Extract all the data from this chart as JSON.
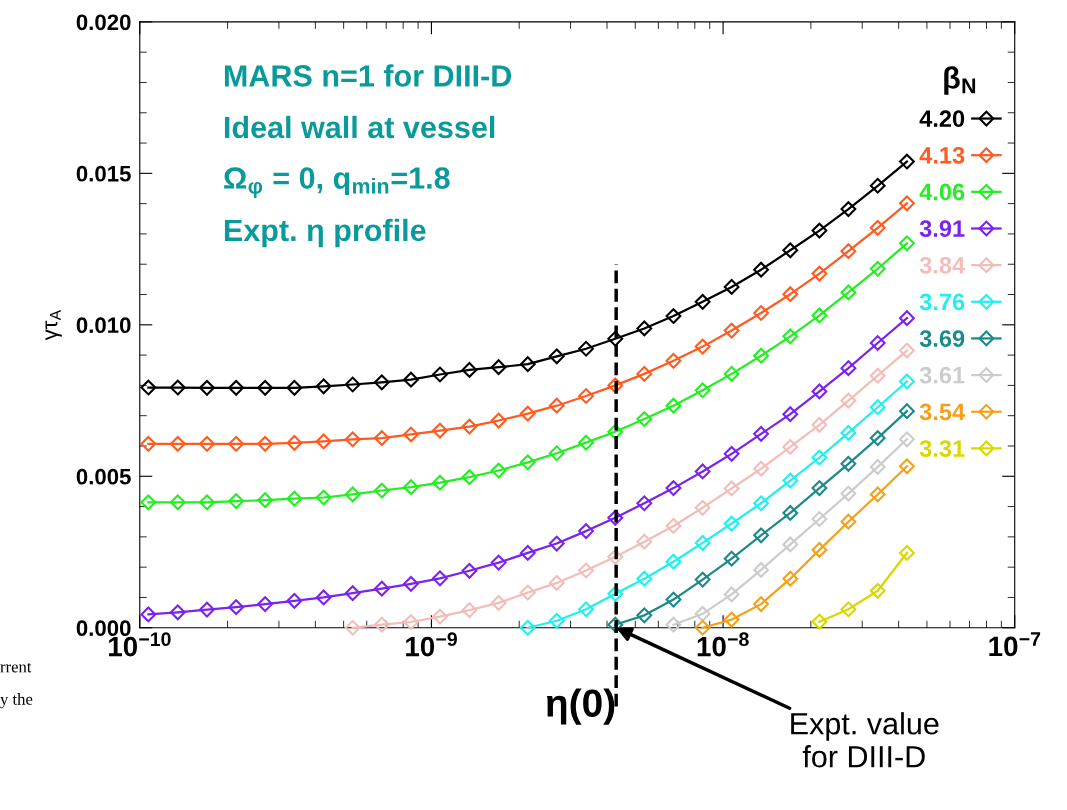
{
  "chart_data": {
    "type": "line",
    "ylabel": "γτ$_{A}$",
    "legend_title": "β$_{N}$",
    "x": [
      1.07e-10,
      1.35e-10,
      1.7e-10,
      2.14e-10,
      2.69e-10,
      3.39e-10,
      4.27e-10,
      5.37e-10,
      6.76e-10,
      8.51e-10,
      1.07e-09,
      1.35e-09,
      1.7e-09,
      2.14e-09,
      2.69e-09,
      3.39e-09,
      4.27e-09,
      5.37e-09,
      6.76e-09,
      8.51e-09,
      1.07e-08,
      1.35e-08,
      1.7e-08,
      2.14e-08,
      2.69e-08,
      3.39e-08,
      4.27e-08
    ],
    "series": [
      {
        "name": "4.20",
        "color": "#000000",
        "values": [
          0.00793,
          0.00793,
          0.00792,
          0.00792,
          0.00792,
          0.00792,
          0.00797,
          0.00803,
          0.0081,
          0.00819,
          0.00836,
          0.00851,
          0.0086,
          0.0087,
          0.00896,
          0.00921,
          0.00954,
          0.00988,
          0.01029,
          0.01076,
          0.01125,
          0.01182,
          0.01246,
          0.01311,
          0.01382,
          0.01459,
          0.01539
        ]
      },
      {
        "name": "4.13",
        "color": "#ff5a1f",
        "values": [
          0.00607,
          0.00607,
          0.00607,
          0.00607,
          0.00607,
          0.0061,
          0.00615,
          0.00622,
          0.00626,
          0.00638,
          0.00651,
          0.00664,
          0.00684,
          0.00707,
          0.00733,
          0.00765,
          0.008,
          0.00838,
          0.00881,
          0.00928,
          0.00981,
          0.01039,
          0.01101,
          0.01169,
          0.01243,
          0.0132,
          0.01401
        ]
      },
      {
        "name": "4.06",
        "color": "#22ee22",
        "values": [
          0.00414,
          0.00414,
          0.00414,
          0.00418,
          0.00421,
          0.00426,
          0.0043,
          0.0044,
          0.00453,
          0.00464,
          0.00479,
          0.00497,
          0.00519,
          0.00546,
          0.00576,
          0.00611,
          0.00647,
          0.00689,
          0.00733,
          0.00784,
          0.00838,
          0.00898,
          0.00962,
          0.01031,
          0.01107,
          0.01185,
          0.01269
        ]
      },
      {
        "name": "3.91",
        "color": "#7a22ee",
        "values": [
          0.00044,
          0.00051,
          0.0006,
          0.00068,
          0.00078,
          0.00089,
          0.001,
          0.00114,
          0.00129,
          0.00145,
          0.00163,
          0.00188,
          0.00215,
          0.00247,
          0.00278,
          0.00319,
          0.00363,
          0.00411,
          0.00461,
          0.00516,
          0.00574,
          0.0064,
          0.00705,
          0.0078,
          0.00857,
          0.0094,
          0.01022
        ]
      },
      {
        "name": "3.84",
        "color": "#f4bcb8",
        "values": [
          null,
          null,
          null,
          null,
          null,
          null,
          null,
          0.0,
          0.0001,
          0.00019,
          0.00037,
          0.00058,
          0.00082,
          0.00116,
          0.00148,
          0.00189,
          0.00234,
          0.00284,
          0.00336,
          0.00396,
          0.0046,
          0.00525,
          0.00597,
          0.0067,
          0.0075,
          0.00832,
          0.00915
        ]
      },
      {
        "name": "3.76",
        "color": "#22eeee",
        "values": [
          null,
          null,
          null,
          null,
          null,
          null,
          null,
          null,
          null,
          null,
          null,
          null,
          null,
          0.0,
          0.00023,
          0.00061,
          0.00112,
          0.00162,
          0.00218,
          0.0028,
          0.00344,
          0.00411,
          0.00486,
          0.00562,
          0.00643,
          0.00728,
          0.00813
        ]
      },
      {
        "name": "3.69",
        "color": "#1a8a8a",
        "values": [
          null,
          null,
          null,
          null,
          null,
          null,
          null,
          null,
          null,
          null,
          null,
          null,
          null,
          null,
          null,
          null,
          0.0001,
          0.00041,
          0.00093,
          0.00159,
          0.00228,
          0.00305,
          0.00379,
          0.00461,
          0.00541,
          0.00626,
          0.00715
        ]
      },
      {
        "name": "3.61",
        "color": "#cccccc",
        "values": [
          null,
          null,
          null,
          null,
          null,
          null,
          null,
          null,
          null,
          null,
          null,
          null,
          null,
          null,
          null,
          null,
          null,
          null,
          0.0001,
          0.00046,
          0.0011,
          0.00191,
          0.00275,
          0.00359,
          0.00443,
          0.00531,
          0.00622
        ]
      },
      {
        "name": "3.54",
        "color": "#f5a01a",
        "values": [
          null,
          null,
          null,
          null,
          null,
          null,
          null,
          null,
          null,
          null,
          null,
          null,
          null,
          null,
          null,
          null,
          null,
          null,
          null,
          0.0,
          0.00027,
          0.00078,
          0.00162,
          0.00257,
          0.0035,
          0.0044,
          0.00533
        ]
      },
      {
        "name": "3.31",
        "color": "#d8d800",
        "values": [
          null,
          null,
          null,
          null,
          null,
          null,
          null,
          null,
          null,
          null,
          null,
          null,
          null,
          null,
          null,
          null,
          null,
          null,
          null,
          null,
          null,
          null,
          null,
          0.0002,
          0.00061,
          0.00122,
          0.00247
        ]
      }
    ],
    "log": "x",
    "legend": "right",
    "marker": "diamond",
    "line_style": "solid",
    "grid": false,
    "xlim": [
      1e-10,
      1e-07
    ],
    "xticks": [
      {
        "value": 1e-10,
        "label": "10$^{−10}$"
      },
      {
        "value": 1e-09,
        "label": "10$^{−9}$"
      },
      {
        "value": 1e-08,
        "label": "10$^{−8}$"
      },
      {
        "value": 1e-07,
        "label": "10$^{−7}$"
      }
    ],
    "ylim": [
      0,
      0.02
    ],
    "yticks": [
      {
        "value": 0,
        "label": "0.000"
      },
      {
        "value": 0.005,
        "label": "0.005"
      },
      {
        "value": 0.01,
        "label": "0.010"
      },
      {
        "value": 0.015,
        "label": "0.015"
      },
      {
        "value": 0.02,
        "label": "0.020"
      }
    ],
    "ref_lines": [
      {
        "axis": "x",
        "value": 4.3e-09,
        "color": "#000000",
        "line_style": "dashed"
      }
    ],
    "annotations": [
      "MARS n=1 for DIII-D",
      "Ideal wall at vessel",
      "Ω$_{φ}$ = 0, q$_{min}$=1.8",
      "Expt. η profile",
      {
        "text": "η(0)",
        "x": 4.3e-09
      },
      {
        "text": "Expt. value\nfor DIII-D",
        "x": 4.3e-09,
        "y": 0
      },
      "rrent",
      "y the"
    ]
  }
}
